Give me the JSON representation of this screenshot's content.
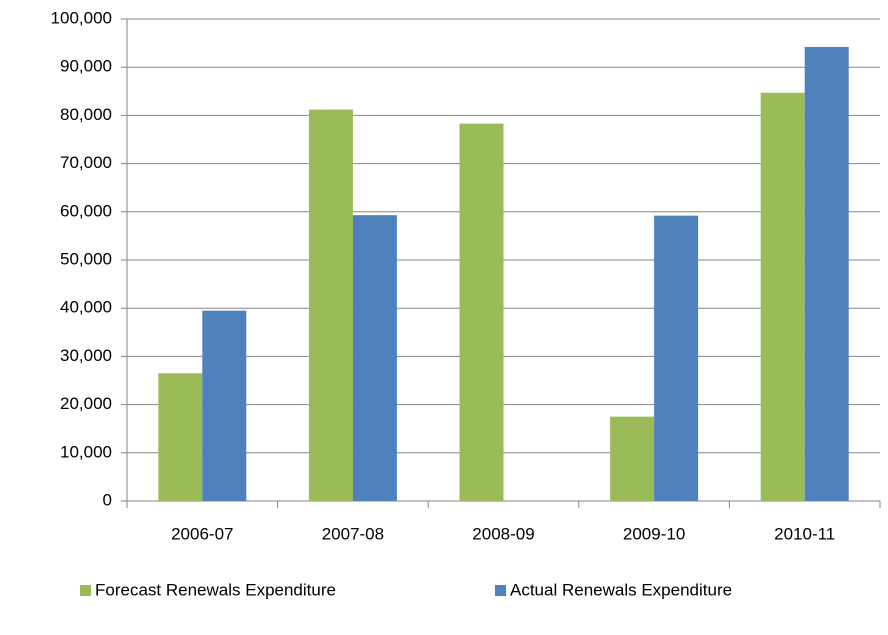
{
  "chart_data": {
    "type": "bar",
    "categories": [
      "2006-07",
      "2007-08",
      "2008-09",
      "2009-10",
      "2010-11"
    ],
    "series": [
      {
        "name": "Forecast Renewals Expenditure",
        "color": "#9bbb59",
        "values": [
          26500,
          81200,
          78300,
          17500,
          84700
        ]
      },
      {
        "name": "Actual Renewals Expenditure",
        "color": "#4f81bd",
        "values": [
          39500,
          59300,
          null,
          59200,
          94200
        ]
      }
    ],
    "ylim": [
      0,
      100000
    ],
    "yticks": [
      {
        "value": 0,
        "label": "0"
      },
      {
        "value": 10000,
        "label": "10,000"
      },
      {
        "value": 20000,
        "label": "20,000"
      },
      {
        "value": 30000,
        "label": "30,000"
      },
      {
        "value": 40000,
        "label": "40,000"
      },
      {
        "value": 50000,
        "label": "50,000"
      },
      {
        "value": 60000,
        "label": "60,000"
      },
      {
        "value": 70000,
        "label": "70,000"
      },
      {
        "value": 80000,
        "label": "80,000"
      },
      {
        "value": 90000,
        "label": "90,000"
      },
      {
        "value": 100000,
        "label": "100,000"
      }
    ],
    "grid": true,
    "legend": "bottom"
  }
}
